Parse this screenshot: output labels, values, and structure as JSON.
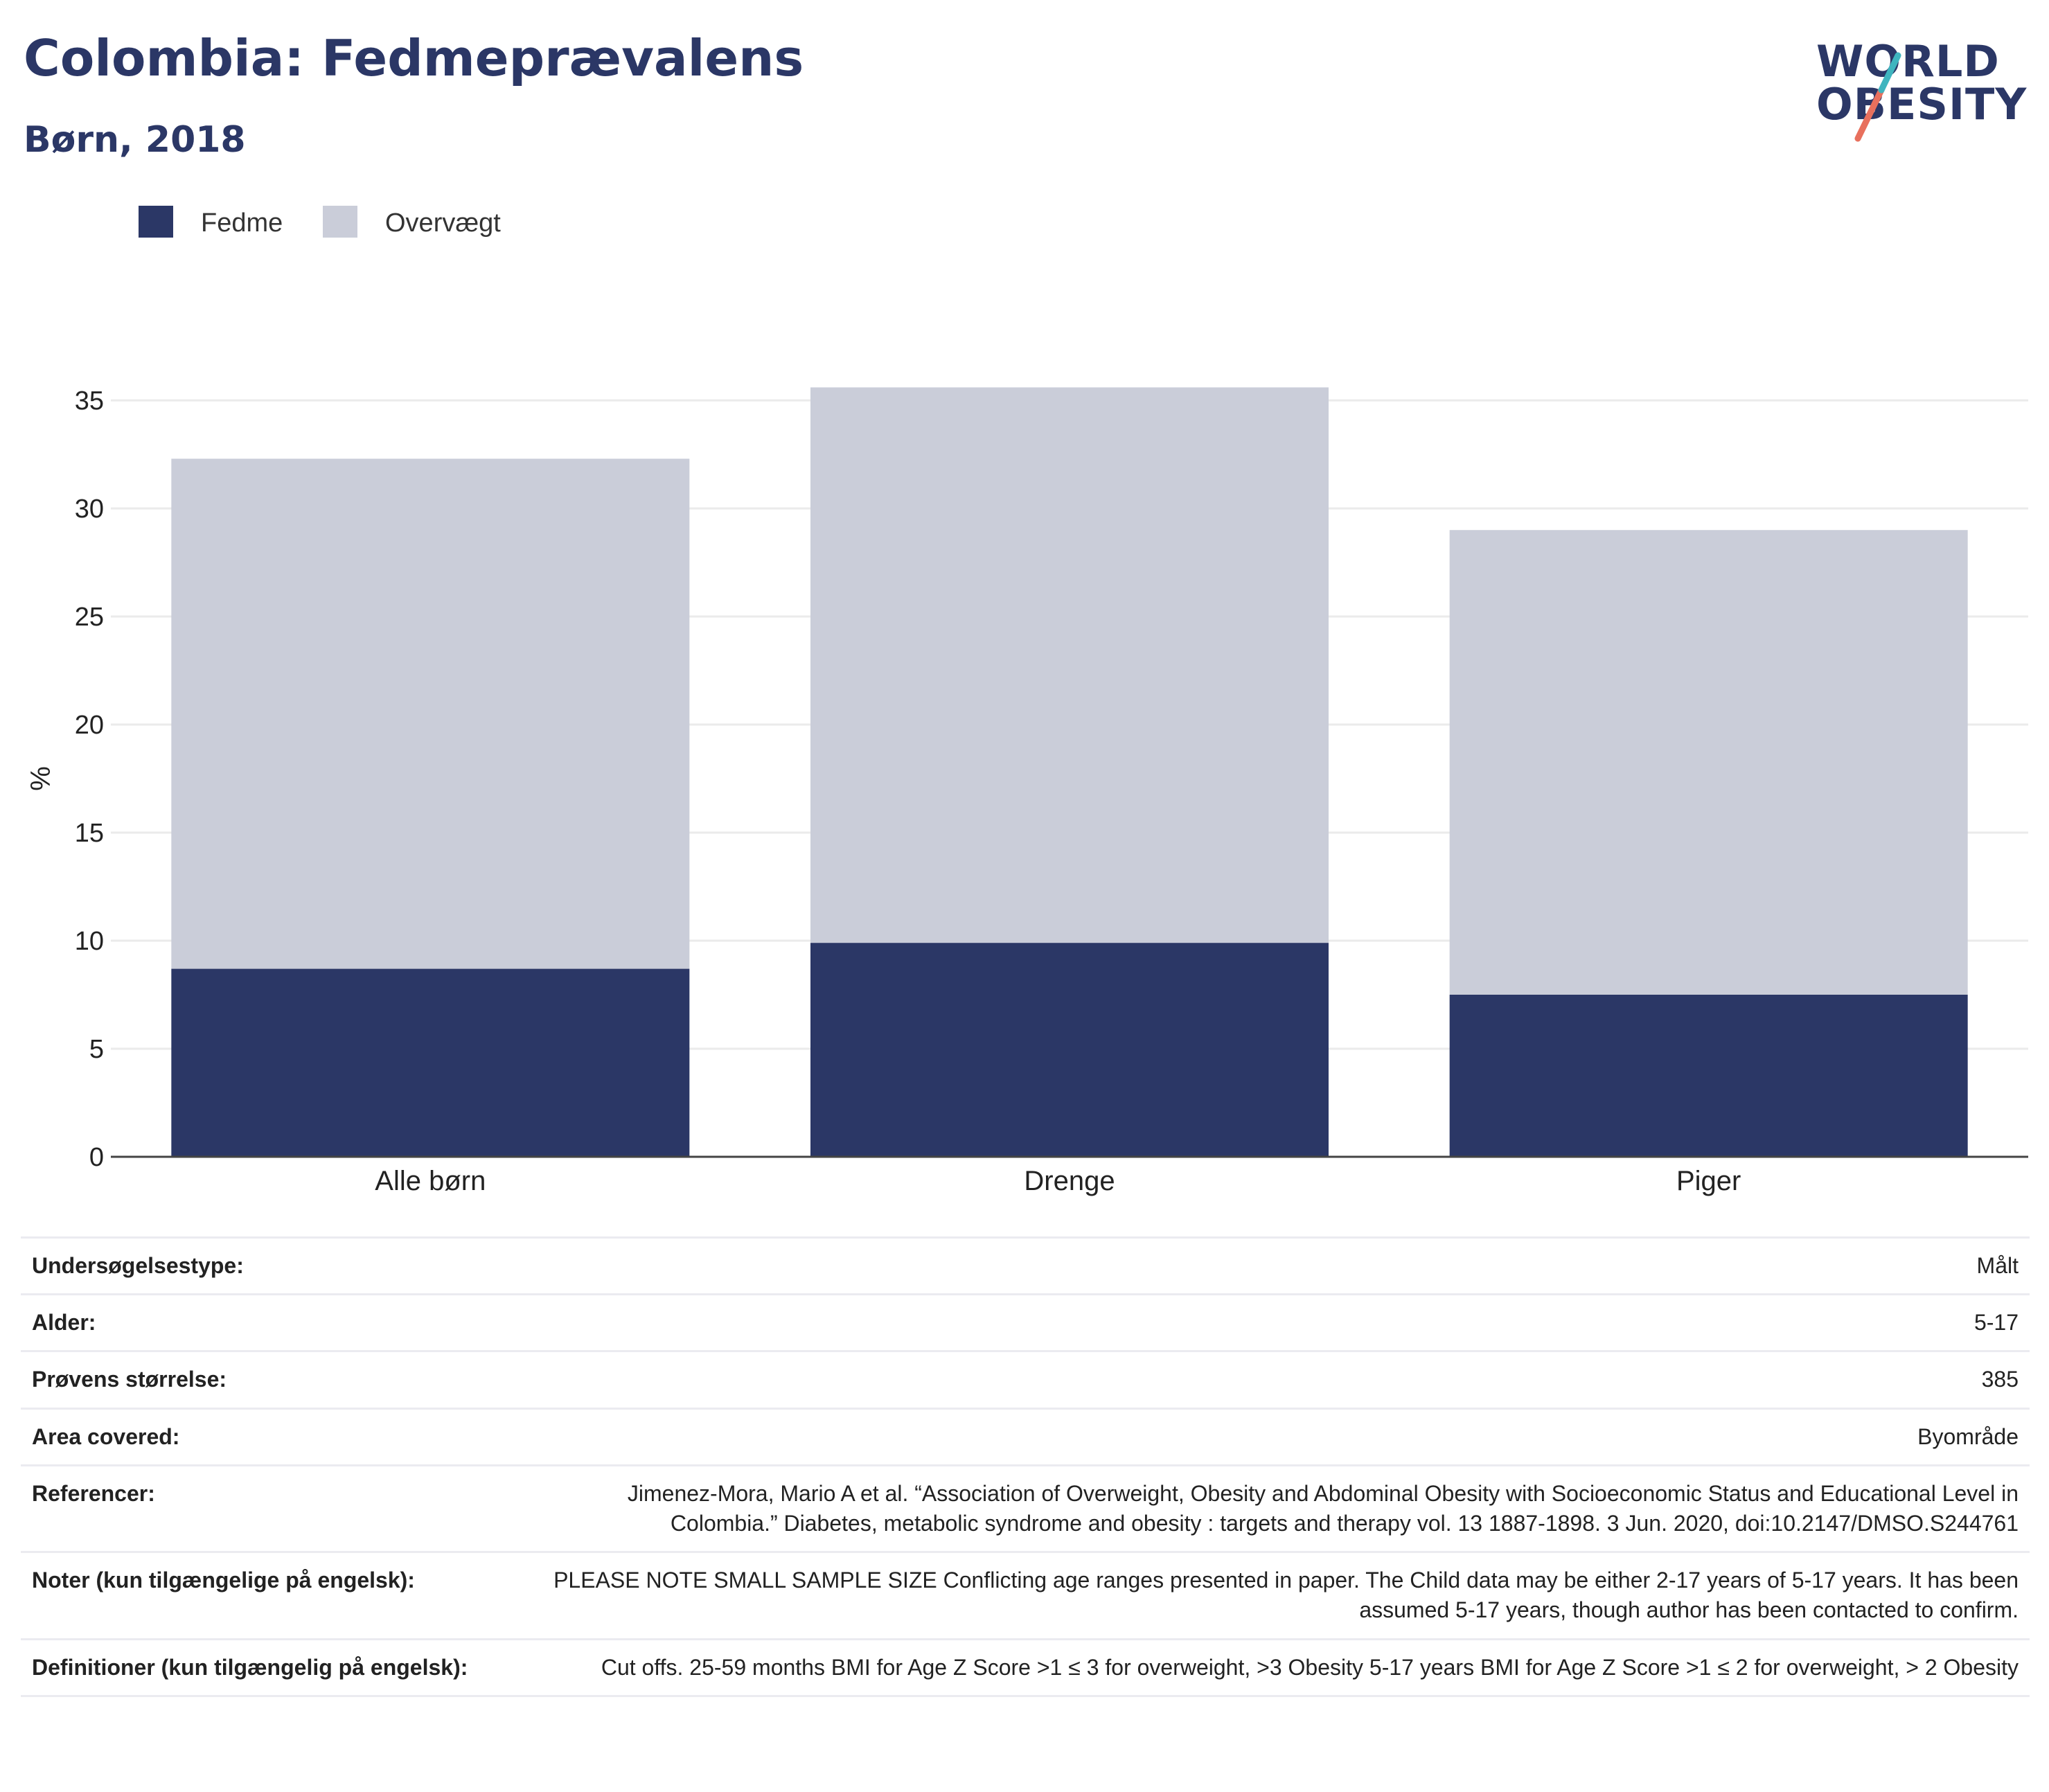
{
  "header": {
    "title": "Colombia: Fedmeprævalens",
    "subtitle": "Børn, 2018"
  },
  "logo": {
    "line1": "WORLD",
    "line2": "OBESITY",
    "brand_colors": [
      "#2b3766",
      "#e8705d",
      "#3fb5bf"
    ]
  },
  "legend": [
    {
      "label": "Fedme",
      "color": "#2b3766"
    },
    {
      "label": "Overvægt",
      "color": "#cacdd9"
    }
  ],
  "chart_data": {
    "type": "bar",
    "stacked": true,
    "categories": [
      "Alle børn",
      "Drenge",
      "Piger"
    ],
    "series": [
      {
        "name": "Fedme",
        "color": "#2b3766",
        "values": [
          8.7,
          9.9,
          7.5
        ]
      },
      {
        "name": "Overvægt",
        "color": "#cacdd9",
        "values": [
          23.6,
          25.7,
          21.5
        ]
      }
    ],
    "ylabel": "%",
    "ylim": [
      0,
      36
    ],
    "yticks": [
      0,
      5,
      10,
      15,
      20,
      25,
      30,
      35
    ],
    "grid": true,
    "legend_position": "top-left"
  },
  "info": [
    {
      "key": "Undersøgelsestype:",
      "value": "Målt"
    },
    {
      "key": "Alder:",
      "value": "5-17"
    },
    {
      "key": "Prøvens størrelse:",
      "value": "385"
    },
    {
      "key": "Area covered:",
      "value": "Byområde"
    },
    {
      "key": "Referencer:",
      "value": "Jimenez-Mora, Mario A et al. “Association of Overweight, Obesity and Abdominal Obesity with Socioeconomic Status and Educational Level in Colombia.” Diabetes, metabolic syndrome and obesity : targets and therapy vol. 13 1887-1898. 3 Jun. 2020, doi:10.2147/DMSO.S244761"
    },
    {
      "key": "Noter (kun tilgængelige på engelsk):",
      "value": "PLEASE NOTE SMALL SAMPLE SIZE Conflicting age ranges presented in paper. The Child data may be either 2-17 years of 5-17 years. It has been assumed 5-17 years, though author has been contacted to confirm."
    },
    {
      "key": "Definitioner (kun tilgængelig på engelsk):",
      "value": "Cut offs. 25-59 months BMI for Age Z Score >1 ≤ 3 for overweight, >3 Obesity 5-17 years BMI for Age Z Score >1 ≤ 2 for overweight, > 2 Obesity"
    }
  ]
}
